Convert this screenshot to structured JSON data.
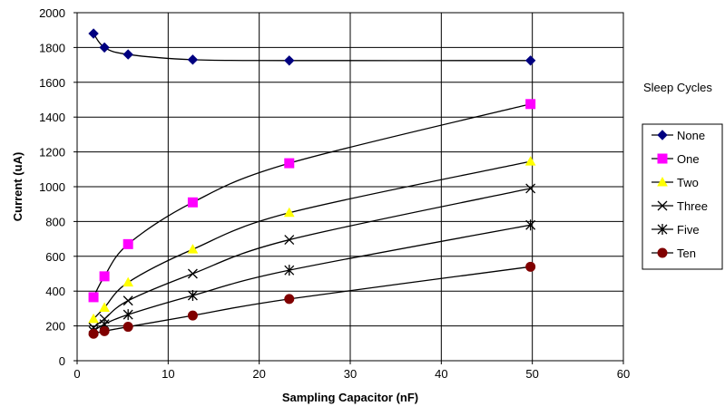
{
  "chart_data": {
    "type": "line",
    "xlabel": "Sampling Capacitor (nF)",
    "ylabel": "Current (uA)",
    "xlim": [
      0,
      60
    ],
    "ylim": [
      0,
      2000
    ],
    "xticks": [
      0,
      10,
      20,
      30,
      40,
      50,
      60
    ],
    "yticks": [
      0,
      200,
      400,
      600,
      800,
      1000,
      1200,
      1400,
      1600,
      1800,
      2000
    ],
    "grid": true,
    "legend": {
      "title": "Sleep Cycles",
      "position": "right"
    },
    "series": [
      {
        "name": "None",
        "marker": "diamond",
        "color": "#000080",
        "x": [
          1.8,
          3.0,
          5.6,
          12.7,
          23.3,
          49.8
        ],
        "y": [
          1880,
          1800,
          1760,
          1730,
          1725,
          1725
        ]
      },
      {
        "name": "One",
        "marker": "square",
        "color": "#ff00ff",
        "x": [
          1.8,
          3.0,
          5.6,
          12.7,
          23.3,
          49.8
        ],
        "y": [
          365,
          485,
          670,
          910,
          1135,
          1475
        ]
      },
      {
        "name": "Two",
        "marker": "triangle",
        "color": "#ffff00",
        "x": [
          1.8,
          3.0,
          5.6,
          12.7,
          23.3,
          49.8
        ],
        "y": [
          240,
          305,
          450,
          640,
          850,
          1145
        ]
      },
      {
        "name": "Three",
        "marker": "x",
        "color": "#000000",
        "x": [
          1.8,
          3.0,
          5.6,
          12.7,
          23.3,
          49.8
        ],
        "y": [
          190,
          240,
          345,
          500,
          695,
          990
        ]
      },
      {
        "name": "Five",
        "marker": "star",
        "color": "#000000",
        "x": [
          1.8,
          3.0,
          5.6,
          12.7,
          23.3,
          49.8
        ],
        "y": [
          170,
          210,
          265,
          375,
          520,
          780
        ]
      },
      {
        "name": "Ten",
        "marker": "circle",
        "color": "#800000",
        "x": [
          1.8,
          3.0,
          5.6,
          12.7,
          23.3,
          49.8
        ],
        "y": [
          155,
          170,
          195,
          260,
          355,
          540
        ]
      }
    ]
  }
}
